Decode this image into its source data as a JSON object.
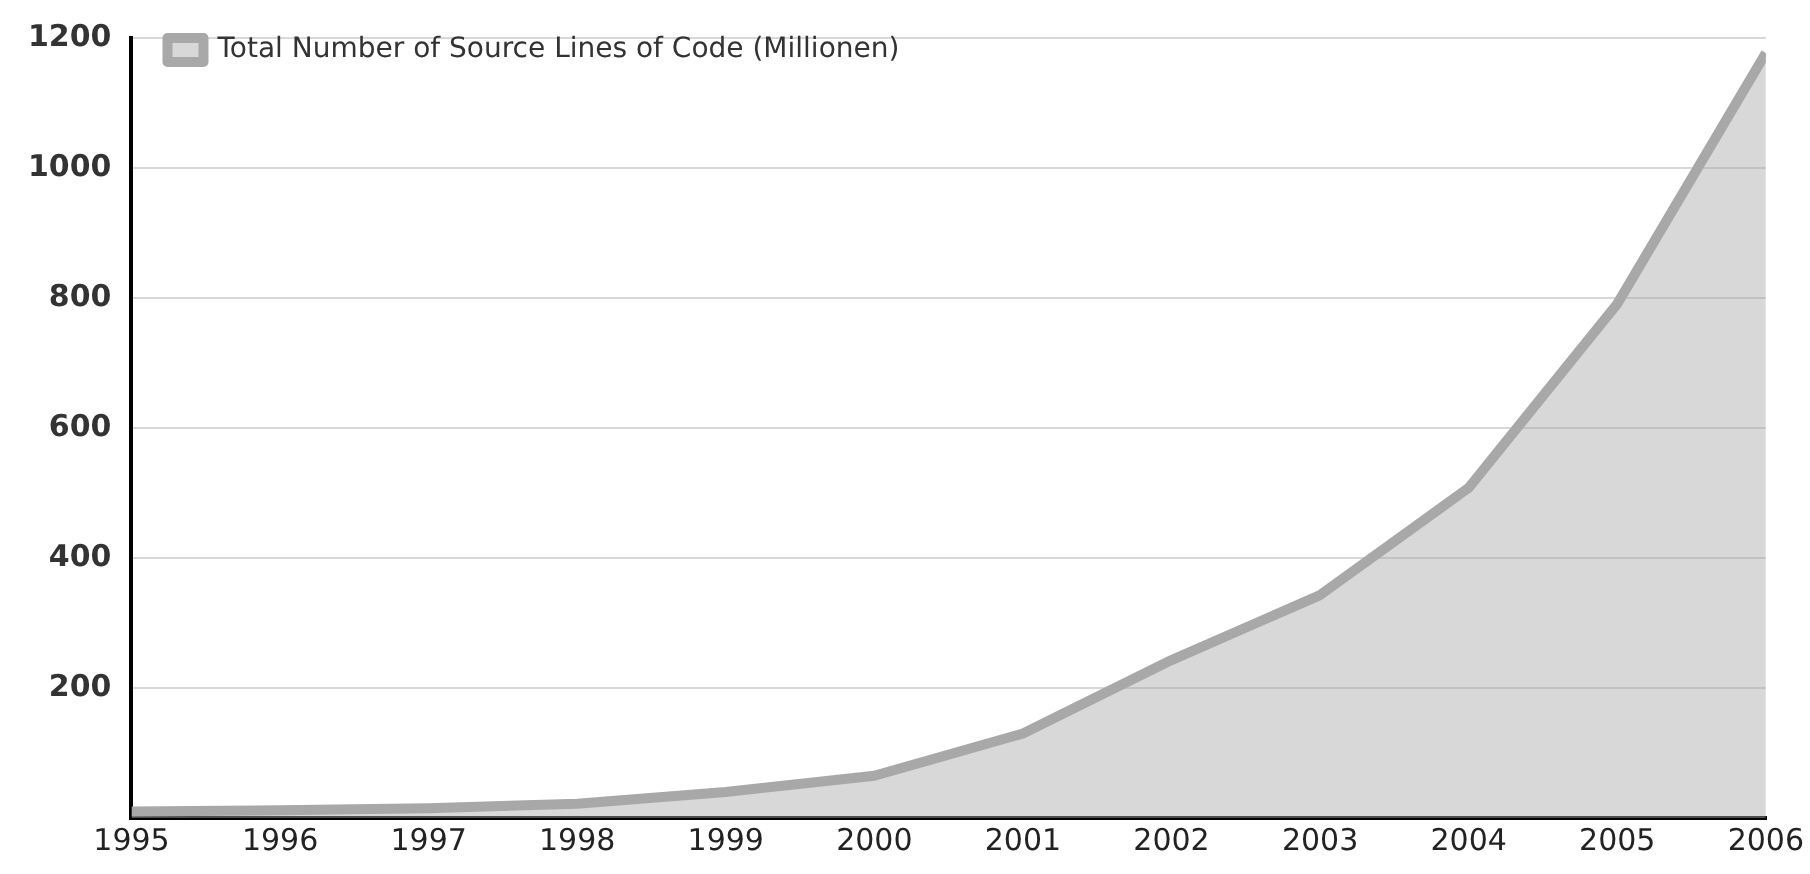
{
  "chart_data": {
    "type": "area",
    "x": [
      1995,
      1996,
      1997,
      1998,
      1999,
      2000,
      2001,
      2002,
      2003,
      2004,
      2005,
      2006
    ],
    "series": [
      {
        "name": "Total Number of Source Lines of Code (Millionen)",
        "color": "#a8a8a8",
        "values": [
          10,
          12,
          15,
          22,
          40,
          65,
          130,
          243,
          343,
          508,
          791,
          1177
        ]
      }
    ],
    "xlim": [
      1995,
      2006
    ],
    "xticks": [
      1995,
      1996,
      1997,
      1998,
      1999,
      2000,
      2001,
      2002,
      2003,
      2004,
      2005,
      2006
    ],
    "ylim": [
      0,
      1200
    ],
    "yticks": [
      {
        "value": 0,
        "label": null
      },
      200,
      400,
      600,
      800,
      1000,
      1200
    ],
    "grid": "y",
    "legend": "top left"
  }
}
